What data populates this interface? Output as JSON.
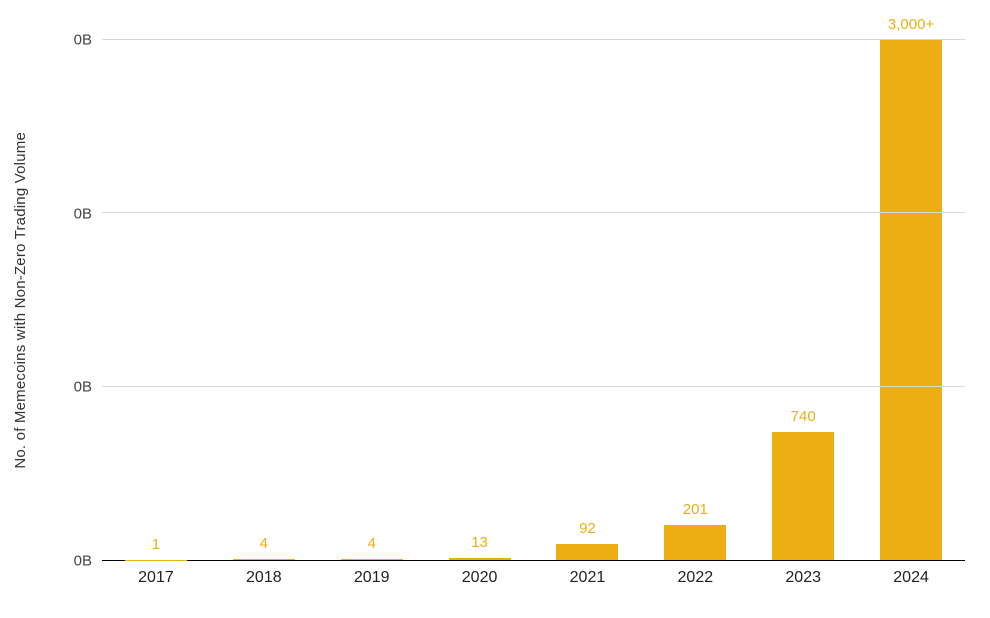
{
  "chart_data": {
    "type": "bar",
    "categories": [
      "2017",
      "2018",
      "2019",
      "2020",
      "2021",
      "2022",
      "2023",
      "2024"
    ],
    "values": [
      1,
      4,
      4,
      13,
      92,
      201,
      740,
      3000
    ],
    "data_labels": [
      "1",
      "4",
      "4",
      "13",
      "92",
      "201",
      "740",
      "3,000+"
    ],
    "title": "",
    "xlabel": "",
    "ylabel": "No. of Memecoins with Non-Zero Trading Volume",
    "ylim": [
      0,
      3000
    ],
    "y_tick_labels": [
      "0B",
      "0B",
      "0B",
      "0B"
    ],
    "grid": "horizontal",
    "legend_position": "none",
    "bar_color": "#EDAE13",
    "label_color": "#EDAE13",
    "gridline_color": "#d9d9d9",
    "axis_color": "#000000"
  }
}
